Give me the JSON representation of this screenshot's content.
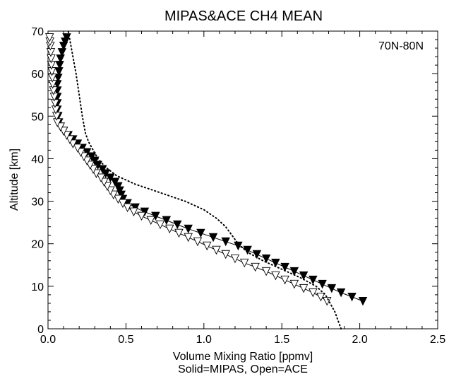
{
  "chart_data": {
    "type": "line",
    "title": "MIPAS&ACE CH4 MEAN",
    "xlabel": "Volume Mixing Ratio [ppmv]",
    "xlabel2": "Solid=MIPAS, Open=ACE",
    "ylabel": "Altitude [km]",
    "annotation": "70N-80N",
    "xlim": [
      0,
      2.5
    ],
    "ylim": [
      0,
      70
    ],
    "xticks": [
      "0.0",
      "0.5",
      "1.0",
      "1.5",
      "2.0",
      "2.5"
    ],
    "yticks": [
      "0",
      "10",
      "20",
      "30",
      "40",
      "50",
      "60",
      "70"
    ],
    "grid": false,
    "series": [
      {
        "name": "MIPAS",
        "marker": "filled-down-triangle",
        "line": "solid",
        "points": [
          [
            2.02,
            6.5
          ],
          [
            1.95,
            7.5
          ],
          [
            1.88,
            8.5
          ],
          [
            1.82,
            9.5
          ],
          [
            1.76,
            10.5
          ],
          [
            1.7,
            11.5
          ],
          [
            1.64,
            12.5
          ],
          [
            1.58,
            13.5
          ],
          [
            1.52,
            14.5
          ],
          [
            1.46,
            15.5
          ],
          [
            1.4,
            16.5
          ],
          [
            1.34,
            17.5
          ],
          [
            1.28,
            18.5
          ],
          [
            1.22,
            19.5
          ],
          [
            1.14,
            20.5
          ],
          [
            1.06,
            21.5
          ],
          [
            0.98,
            22.5
          ],
          [
            0.9,
            23.5
          ],
          [
            0.83,
            24.5
          ],
          [
            0.76,
            25.5
          ],
          [
            0.69,
            26.5
          ],
          [
            0.62,
            27.5
          ],
          [
            0.56,
            28.5
          ],
          [
            0.51,
            29.5
          ],
          [
            0.48,
            30.5
          ],
          [
            0.47,
            31.5
          ],
          [
            0.46,
            32.5
          ],
          [
            0.45,
            33.5
          ],
          [
            0.43,
            34.5
          ],
          [
            0.4,
            35.5
          ],
          [
            0.37,
            36.5
          ],
          [
            0.35,
            37.5
          ],
          [
            0.32,
            38.5
          ],
          [
            0.3,
            39.5
          ],
          [
            0.28,
            40.5
          ],
          [
            0.25,
            41.5
          ],
          [
            0.22,
            42.5
          ],
          [
            0.19,
            43.5
          ],
          [
            0.16,
            44.5
          ],
          [
            0.13,
            45.5
          ],
          [
            0.1,
            46.5
          ],
          [
            0.08,
            47.5
          ],
          [
            0.07,
            48.5
          ],
          [
            0.065,
            50
          ],
          [
            0.06,
            51.5
          ],
          [
            0.06,
            53
          ],
          [
            0.06,
            54.5
          ],
          [
            0.06,
            56
          ],
          [
            0.06,
            57.5
          ],
          [
            0.065,
            59
          ],
          [
            0.07,
            60.5
          ],
          [
            0.075,
            62
          ],
          [
            0.08,
            63.5
          ],
          [
            0.09,
            65
          ],
          [
            0.1,
            66.5
          ],
          [
            0.11,
            67.5
          ],
          [
            0.12,
            68.5
          ]
        ]
      },
      {
        "name": "ACE",
        "marker": "open-down-triangle",
        "line": "solid",
        "points": [
          [
            1.79,
            6.5
          ],
          [
            1.75,
            7.5
          ],
          [
            1.7,
            8.5
          ],
          [
            1.64,
            9.5
          ],
          [
            1.58,
            10.5
          ],
          [
            1.52,
            11.5
          ],
          [
            1.46,
            12.5
          ],
          [
            1.4,
            13.5
          ],
          [
            1.33,
            14.5
          ],
          [
            1.26,
            15.5
          ],
          [
            1.2,
            16.5
          ],
          [
            1.14,
            17.5
          ],
          [
            1.08,
            18.5
          ],
          [
            1.02,
            19.5
          ],
          [
            0.96,
            20.5
          ],
          [
            0.9,
            21.5
          ],
          [
            0.84,
            22.5
          ],
          [
            0.78,
            23.5
          ],
          [
            0.72,
            24.5
          ],
          [
            0.66,
            25.5
          ],
          [
            0.6,
            26.5
          ],
          [
            0.55,
            27.5
          ],
          [
            0.51,
            28.5
          ],
          [
            0.48,
            29.5
          ],
          [
            0.45,
            30.5
          ],
          [
            0.42,
            31.5
          ],
          [
            0.4,
            32.5
          ],
          [
            0.38,
            33.5
          ],
          [
            0.36,
            34.5
          ],
          [
            0.34,
            35.5
          ],
          [
            0.31,
            36.5
          ],
          [
            0.29,
            37.5
          ],
          [
            0.27,
            38.5
          ],
          [
            0.25,
            39.5
          ],
          [
            0.23,
            40.5
          ],
          [
            0.21,
            41.5
          ],
          [
            0.19,
            42.5
          ],
          [
            0.16,
            43.5
          ],
          [
            0.14,
            44.5
          ],
          [
            0.12,
            45.5
          ],
          [
            0.1,
            46.5
          ],
          [
            0.08,
            47.5
          ],
          [
            0.06,
            48.5
          ],
          [
            0.055,
            50
          ],
          [
            0.05,
            51.5
          ],
          [
            0.045,
            53
          ],
          [
            0.04,
            54.5
          ],
          [
            0.035,
            56
          ],
          [
            0.03,
            57.5
          ],
          [
            0.028,
            59
          ],
          [
            0.025,
            60.5
          ],
          [
            0.022,
            62
          ],
          [
            0.02,
            63.5
          ],
          [
            0.018,
            65
          ],
          [
            0.015,
            66.5
          ],
          [
            0.012,
            67.5
          ],
          [
            0.01,
            68.5
          ]
        ]
      },
      {
        "marker": "none",
        "line": "dotted",
        "points": [
          [
            1.88,
            0.0
          ],
          [
            1.86,
            2.0
          ],
          [
            1.84,
            4.0
          ],
          [
            1.81,
            6.0
          ],
          [
            1.78,
            8.0
          ],
          [
            1.72,
            10.0
          ],
          [
            1.62,
            12.0
          ],
          [
            1.5,
            14.0
          ],
          [
            1.38,
            16.0
          ],
          [
            1.28,
            18.0
          ],
          [
            1.22,
            20.0
          ],
          [
            1.18,
            22.0
          ],
          [
            1.14,
            24.0
          ],
          [
            1.08,
            26.0
          ],
          [
            1.0,
            28.0
          ],
          [
            0.88,
            30.0
          ],
          [
            0.72,
            32.0
          ],
          [
            0.56,
            34.0
          ],
          [
            0.44,
            36.0
          ],
          [
            0.37,
            38.0
          ],
          [
            0.32,
            40.0
          ],
          [
            0.29,
            42.0
          ],
          [
            0.26,
            44.0
          ],
          [
            0.24,
            46.0
          ],
          [
            0.22,
            50.0
          ],
          [
            0.2,
            55.0
          ],
          [
            0.18,
            60.0
          ],
          [
            0.16,
            64.0
          ],
          [
            0.14,
            68.0
          ],
          [
            0.13,
            70.0
          ]
        ]
      }
    ]
  }
}
